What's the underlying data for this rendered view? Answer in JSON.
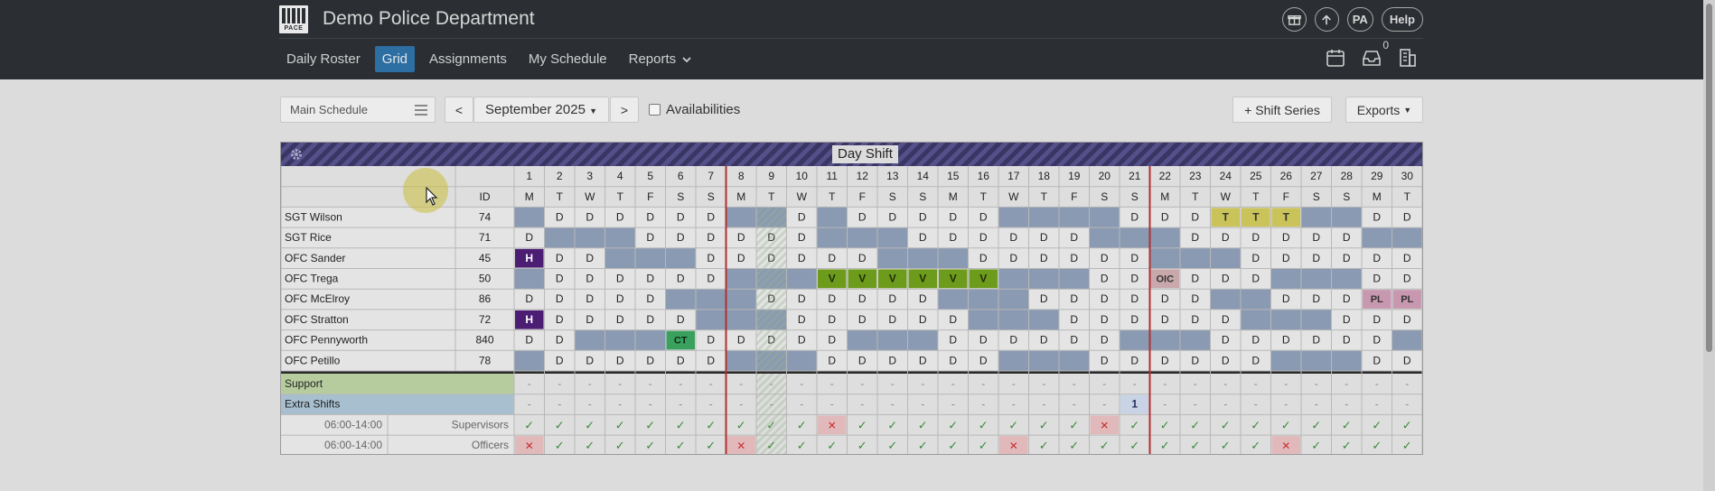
{
  "header": {
    "logo_text": "PACE",
    "department": "Demo Police Department",
    "user_initials": "PA",
    "help_label": "Help",
    "inbox_count": "0"
  },
  "nav": {
    "items": [
      {
        "label": "Daily Roster",
        "active": false
      },
      {
        "label": "Grid",
        "active": true
      },
      {
        "label": "Assignments",
        "active": false
      },
      {
        "label": "My Schedule",
        "active": false
      },
      {
        "label": "Reports",
        "active": false
      }
    ]
  },
  "controls": {
    "schedule": "Main Schedule",
    "prev_label": "<",
    "month": "September 2025",
    "next_label": ">",
    "availabilities_label": "Availabilities",
    "shift_series_label": "+ Shift Series",
    "exports_label": "Exports"
  },
  "grid": {
    "shift_title": "Day Shift",
    "id_header": "ID",
    "days": [
      "1",
      "2",
      "3",
      "4",
      "5",
      "6",
      "7",
      "8",
      "9",
      "10",
      "11",
      "12",
      "13",
      "14",
      "15",
      "16",
      "17",
      "18",
      "19",
      "20",
      "21",
      "22",
      "23",
      "24",
      "25",
      "26",
      "27",
      "28",
      "29",
      "30"
    ],
    "weekdays": [
      "M",
      "T",
      "W",
      "T",
      "F",
      "S",
      "S",
      "M",
      "T",
      "W",
      "T",
      "F",
      "S",
      "S",
      "M",
      "T",
      "W",
      "T",
      "F",
      "S",
      "S",
      "M",
      "T",
      "W",
      "T",
      "F",
      "S",
      "S",
      "M",
      "T"
    ],
    "week_separators_after_day": [
      7,
      21
    ],
    "employees": [
      {
        "name": "SGT Wilson",
        "id": "74",
        "cells": [
          "_",
          "D",
          "D",
          "D",
          "D",
          "D",
          "D",
          "_",
          "_",
          "D",
          "_",
          "D",
          "D",
          "D",
          "D",
          "D",
          "_",
          "_",
          "_",
          "_",
          "D",
          "D",
          "D",
          "T",
          "T",
          "T",
          "_",
          "_",
          "D",
          "D"
        ]
      },
      {
        "name": "SGT Rice",
        "id": "71",
        "cells": [
          "D",
          "_",
          "_",
          "_",
          "D",
          "D",
          "D",
          "D",
          "D",
          "D",
          "_",
          "_",
          "_",
          "D",
          "D",
          "D",
          "D",
          "D",
          "D",
          "_",
          "_",
          "_",
          "D",
          "D",
          "D",
          "D",
          "D",
          "D",
          "_",
          "_"
        ]
      },
      {
        "name": "OFC Sander",
        "id": "45",
        "cells": [
          "H",
          "D",
          "D",
          "_",
          "_",
          "_",
          "D",
          "D",
          "D",
          "D",
          "D",
          "D",
          "_",
          "_",
          "_",
          "D",
          "D",
          "D",
          "D",
          "D",
          "D",
          "_",
          "_",
          "_",
          "D",
          "D",
          "D",
          "D",
          "D",
          "D"
        ]
      },
      {
        "name": "OFC Trega",
        "id": "50",
        "cells": [
          "_",
          "D",
          "D",
          "D",
          "D",
          "D",
          "D",
          "_",
          "_",
          "_",
          "V",
          "V",
          "V",
          "V",
          "V",
          "V",
          "_",
          "_",
          "_",
          "D",
          "D",
          "OIC",
          "D",
          "D",
          "D",
          "_",
          "_",
          "_",
          "D",
          "D"
        ]
      },
      {
        "name": "OFC McElroy",
        "id": "86",
        "cells": [
          "D",
          "D",
          "D",
          "D",
          "D",
          "_",
          "_",
          "_",
          "D",
          "D",
          "D",
          "D",
          "D",
          "D",
          "_",
          "_",
          "_",
          "D",
          "D",
          "D",
          "D",
          "D",
          "D",
          "_",
          "_",
          "D",
          "D",
          "D",
          "PL",
          "PL"
        ]
      },
      {
        "name": "OFC Stratton",
        "id": "72",
        "cells": [
          "H",
          "D",
          "D",
          "D",
          "D",
          "D",
          "_",
          "_",
          "_",
          "D",
          "D",
          "D",
          "D",
          "D",
          "D",
          "_",
          "_",
          "_",
          "D",
          "D",
          "D",
          "D",
          "D",
          "D",
          "_",
          "_",
          "_",
          "D",
          "D",
          "D"
        ]
      },
      {
        "name": "OFC Pennyworth",
        "id": "840",
        "cells": [
          "D",
          "D",
          "_",
          "_",
          "_",
          "CT",
          "D",
          "D",
          "D",
          "D",
          "D",
          "_",
          "_",
          "_",
          "D",
          "D",
          "D",
          "D",
          "D",
          "D",
          "_",
          "_",
          "_",
          "D",
          "D",
          "D",
          "D",
          "D",
          "D",
          "_"
        ]
      },
      {
        "name": "OFC Petillo",
        "id": "78",
        "cells": [
          "_",
          "D",
          "D",
          "D",
          "D",
          "D",
          "D",
          "_",
          "_",
          "_",
          "D",
          "D",
          "D",
          "D",
          "D",
          "D",
          "_",
          "_",
          "_",
          "D",
          "D",
          "D",
          "D",
          "D",
          "D",
          "_",
          "_",
          "_",
          "D",
          "D"
        ]
      }
    ],
    "support_label": "Support",
    "extra_shifts_label": "Extra Shifts",
    "extra_shifts_counts": [
      "-",
      "-",
      "-",
      "-",
      "-",
      "-",
      "-",
      "-",
      "-",
      "-",
      "-",
      "-",
      "-",
      "-",
      "-",
      "-",
      "-",
      "-",
      "-",
      "-",
      "1",
      "-",
      "-",
      "-",
      "-",
      "-",
      "-",
      "-",
      "-",
      "-"
    ],
    "support_counts": [
      "-",
      "-",
      "-",
      "-",
      "-",
      "-",
      "-",
      "-",
      "-",
      "-",
      "-",
      "-",
      "-",
      "-",
      "-",
      "-",
      "-",
      "-",
      "-",
      "-",
      "-",
      "-",
      "-",
      "-",
      "-",
      "-",
      "-",
      "-",
      "-",
      "-"
    ],
    "coverage": [
      {
        "time": "06:00-14:00",
        "role": "Supervisors",
        "status": [
          "ok",
          "ok",
          "ok",
          "ok",
          "ok",
          "ok",
          "ok",
          "ok",
          "ok",
          "ok",
          "no",
          "ok",
          "ok",
          "ok",
          "ok",
          "ok",
          "ok",
          "ok",
          "ok",
          "no",
          "ok",
          "ok",
          "ok",
          "ok",
          "ok",
          "ok",
          "ok",
          "ok",
          "ok",
          "ok"
        ]
      },
      {
        "time": "06:00-14:00",
        "role": "Officers",
        "status": [
          "no",
          "ok",
          "ok",
          "ok",
          "ok",
          "ok",
          "ok",
          "no",
          "ok",
          "ok",
          "ok",
          "ok",
          "ok",
          "ok",
          "ok",
          "ok",
          "no",
          "ok",
          "ok",
          "ok",
          "ok",
          "ok",
          "ok",
          "ok",
          "ok",
          "no",
          "ok",
          "ok",
          "ok",
          "ok"
        ]
      }
    ]
  },
  "colors": {
    "topbar": "#2b2f33",
    "active_tab": "#2d6ea3",
    "off_cell": "#8a9ab2",
    "holiday": "#4b1e73",
    "vacation": "#6d9b1c",
    "training": "#3aa05d",
    "trade": "#c9c35a",
    "oic": "#c9a8ac",
    "personal_leave": "#c898b0",
    "week_separator": "#b03030",
    "check": "#3a8a3a",
    "cross": "#c83030"
  }
}
